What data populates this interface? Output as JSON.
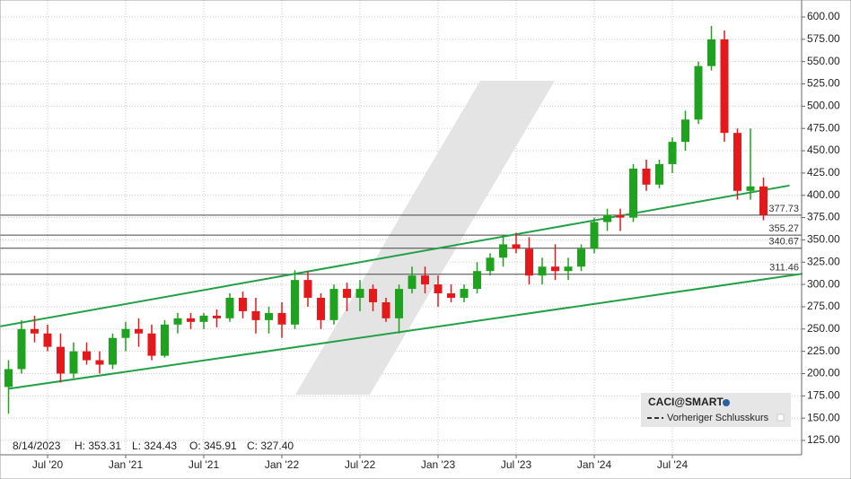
{
  "chart_data": {
    "type": "candlestick",
    "up_color": "#1fa31f",
    "down_color": "#e3191b",
    "channel_color": "#22a045",
    "grid": true,
    "x": [
      "2020-04",
      "2020-05",
      "2020-06",
      "2020-07",
      "2020-08",
      "2020-09",
      "2020-10",
      "2020-11",
      "2020-12",
      "2021-01",
      "2021-02",
      "2021-03",
      "2021-04",
      "2021-05",
      "2021-06",
      "2021-07",
      "2021-08",
      "2021-09",
      "2021-10",
      "2021-11",
      "2021-12",
      "2022-01",
      "2022-02",
      "2022-03",
      "2022-04",
      "2022-05",
      "2022-06",
      "2022-07",
      "2022-08",
      "2022-09",
      "2022-10",
      "2022-11",
      "2022-12",
      "2023-01",
      "2023-02",
      "2023-03",
      "2023-04",
      "2023-05",
      "2023-06",
      "2023-07",
      "2023-08",
      "2023-09",
      "2023-10",
      "2023-11",
      "2023-12",
      "2024-01",
      "2024-02",
      "2024-03",
      "2024-04",
      "2024-05",
      "2024-06",
      "2024-07",
      "2024-08",
      "2024-09",
      "2024-10",
      "2024-11",
      "2024-12",
      "2025-01",
      "2025-02"
    ],
    "open": [
      185,
      205,
      250,
      245,
      230,
      200,
      225,
      215,
      210,
      240,
      250,
      245,
      220,
      255,
      262,
      258,
      265,
      262,
      285,
      270,
      260,
      268,
      255,
      305,
      285,
      260,
      295,
      285,
      295,
      280,
      262,
      295,
      310,
      300,
      290,
      285,
      295,
      315,
      330,
      345,
      340,
      310,
      320,
      315,
      320,
      340,
      370,
      378,
      375,
      430,
      412,
      435,
      460,
      485,
      545,
      575,
      470,
      405,
      410
    ],
    "high": [
      215,
      260,
      265,
      255,
      245,
      235,
      235,
      225,
      245,
      258,
      262,
      255,
      260,
      268,
      268,
      268,
      272,
      290,
      292,
      285,
      275,
      280,
      316,
      315,
      290,
      300,
      302,
      305,
      300,
      285,
      300,
      320,
      320,
      310,
      300,
      300,
      325,
      335,
      355,
      358,
      353,
      330,
      345,
      330,
      345,
      375,
      385,
      385,
      435,
      440,
      440,
      465,
      495,
      550,
      590,
      585,
      475,
      475,
      420
    ],
    "low": [
      155,
      200,
      235,
      225,
      190,
      195,
      210,
      200,
      205,
      225,
      230,
      215,
      218,
      245,
      250,
      250,
      252,
      258,
      262,
      245,
      245,
      240,
      250,
      275,
      250,
      255,
      270,
      270,
      270,
      258,
      245,
      290,
      290,
      275,
      280,
      280,
      290,
      310,
      320,
      335,
      300,
      300,
      305,
      305,
      315,
      335,
      360,
      360,
      370,
      405,
      408,
      425,
      450,
      480,
      540,
      460,
      395,
      395,
      372
    ],
    "close": [
      205,
      250,
      245,
      230,
      200,
      225,
      215,
      210,
      240,
      250,
      245,
      220,
      255,
      262,
      258,
      265,
      262,
      285,
      270,
      260,
      268,
      255,
      305,
      285,
      260,
      295,
      285,
      295,
      280,
      262,
      295,
      310,
      300,
      290,
      285,
      295,
      315,
      330,
      345,
      340,
      310,
      320,
      315,
      320,
      340,
      370,
      378,
      375,
      430,
      412,
      435,
      460,
      485,
      545,
      575,
      470,
      405,
      410,
      378
    ],
    "ylim": [
      118,
      608
    ],
    "yticks": [
      {
        "value": 125,
        "label": "125.00"
      },
      {
        "value": 150,
        "label": "150.00"
      },
      {
        "value": 175,
        "label": "175.00"
      },
      {
        "value": 200,
        "label": "200.00"
      },
      {
        "value": 225,
        "label": "225.00"
      },
      {
        "value": 250,
        "label": "250.00"
      },
      {
        "value": 275,
        "label": "275.00"
      },
      {
        "value": 300,
        "label": "300.00"
      },
      {
        "value": 325,
        "label": "325.00"
      },
      {
        "value": 350,
        "label": "350.00"
      },
      {
        "value": 375,
        "label": "375.00"
      },
      {
        "value": 400,
        "label": "400.00"
      },
      {
        "value": 425,
        "label": "425.00"
      },
      {
        "value": 450,
        "label": "450.00"
      },
      {
        "value": 475,
        "label": "475.00"
      },
      {
        "value": 500,
        "label": "500.00"
      },
      {
        "value": 525,
        "label": "525.00"
      },
      {
        "value": 550,
        "label": "550.00"
      },
      {
        "value": 575,
        "label": "575.00"
      },
      {
        "value": 600,
        "label": "600.00"
      }
    ],
    "xticks": [
      {
        "value": "2020-07",
        "label": "Jul '20"
      },
      {
        "value": "2021-01",
        "label": "Jan '21"
      },
      {
        "value": "2021-07",
        "label": "Jul '21"
      },
      {
        "value": "2022-01",
        "label": "Jan '22"
      },
      {
        "value": "2022-07",
        "label": "Jul '22"
      },
      {
        "value": "2023-01",
        "label": "Jan '23"
      },
      {
        "value": "2023-07",
        "label": "Jul '23"
      },
      {
        "value": "2024-01",
        "label": "Jan '24"
      },
      {
        "value": "2024-07",
        "label": "Jul '24"
      }
    ],
    "levels": [
      377.73,
      355.27,
      340.67,
      311.46
    ],
    "channels": [
      {
        "x": [
          "2020-03",
          "2025-04"
        ],
        "values": [
          252,
          411
        ]
      },
      {
        "x": [
          "2020-04",
          "2025-05"
        ],
        "values": [
          183,
          312
        ]
      }
    ],
    "info": [
      "8/14/2023",
      "H: 353.31",
      "L: 324.43",
      "O: 345.91",
      "C: 327.40"
    ],
    "legend": {
      "symbol": "CACI@SMART",
      "previous_close": "Vorheriger Schlusskurs"
    }
  }
}
